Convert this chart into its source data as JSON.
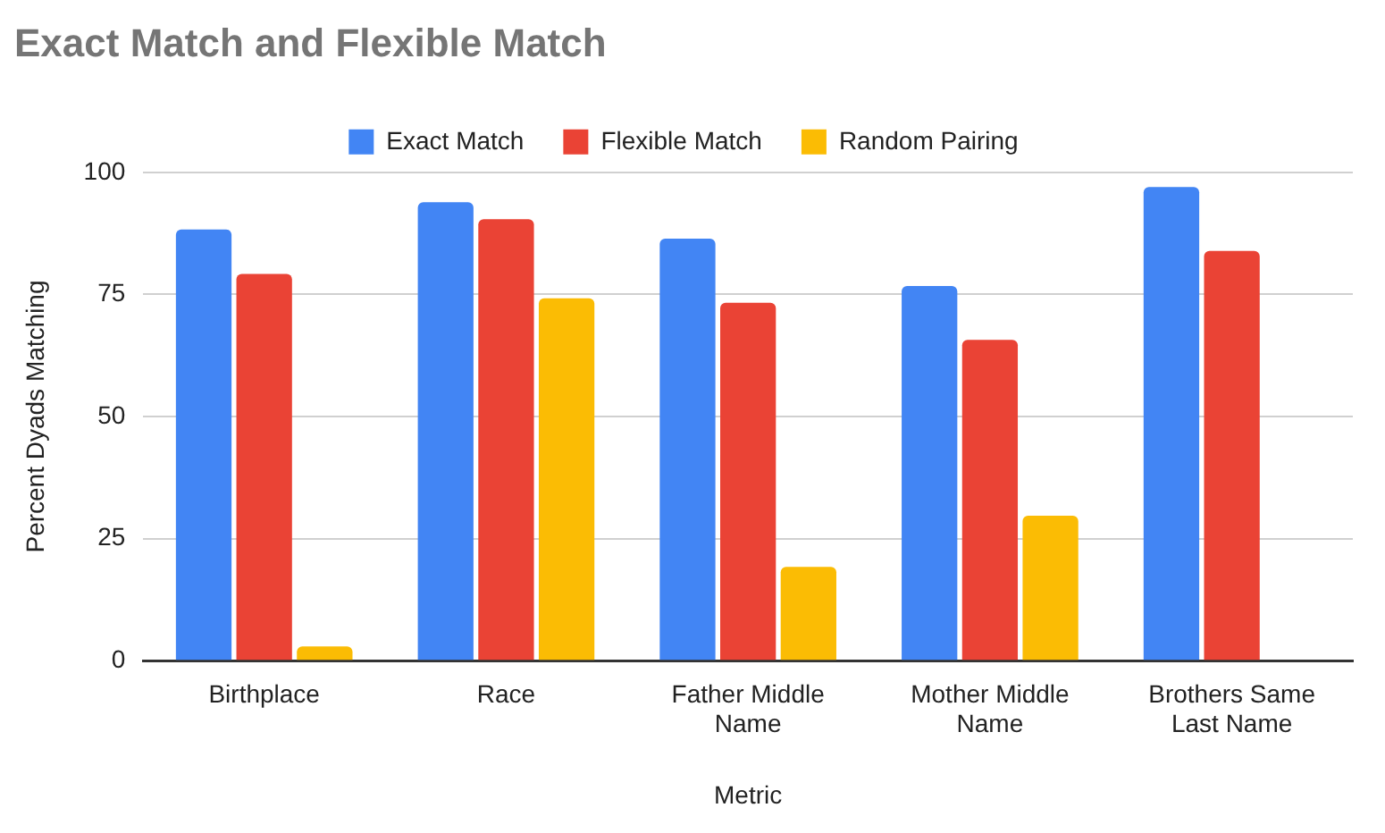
{
  "chart_data": {
    "type": "bar",
    "title": "Exact Match and Flexible Match",
    "xlabel": "Metric",
    "ylabel": "Percent Dyads Matching",
    "categories": [
      "Birthplace",
      "Race",
      "Father Middle Name",
      "Mother Middle Name",
      "Brothers Same Last Name"
    ],
    "series": [
      {
        "name": "Exact Match",
        "color": "#4285f4",
        "values": [
          88.3,
          93.9,
          86.4,
          76.7,
          97.0
        ]
      },
      {
        "name": "Flexible Match",
        "color": "#ea4335",
        "values": [
          79.2,
          90.4,
          73.3,
          65.7,
          83.9
        ]
      },
      {
        "name": "Random Pairing",
        "color": "#fbbc04",
        "values": [
          2.9,
          74.2,
          19.2,
          29.7,
          null
        ]
      }
    ],
    "ylim": [
      0,
      100
    ],
    "yticks": [
      0,
      25,
      50,
      75,
      100
    ],
    "grid": "y",
    "legend": "top"
  }
}
